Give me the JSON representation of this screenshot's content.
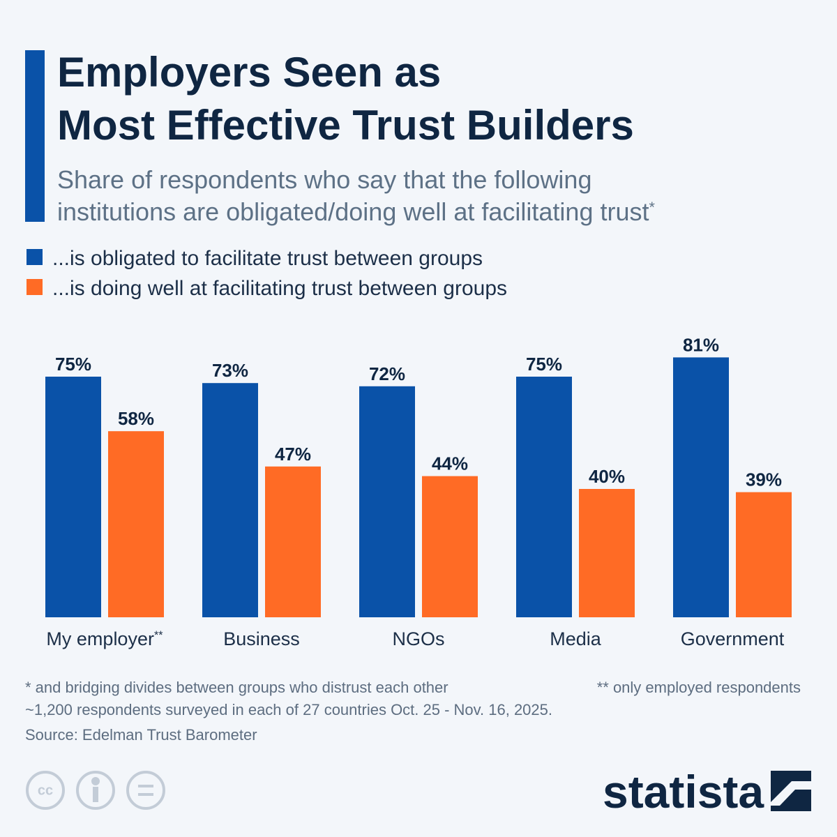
{
  "chart_data": {
    "type": "bar",
    "title": [
      "Employers Seen as",
      "Most Effective Trust Builders"
    ],
    "subtitle": [
      "Share of respondents who say that the following",
      "institutions are obligated/doing well at facilitating trust*"
    ],
    "categories": [
      "My employer**",
      "Business",
      "NGOs",
      "Media",
      "Government"
    ],
    "series": [
      {
        "name": "...is obligated to facilitate trust between groups",
        "color": "#0a52a8",
        "values": [
          75,
          73,
          72,
          75,
          81
        ],
        "value_labels": [
          "75%",
          "73%",
          "72%",
          "75%",
          "81%"
        ]
      },
      {
        "name": "...is doing well at facilitating trust between groups",
        "color": "#ff6b25",
        "values": [
          58,
          47,
          44,
          40,
          39
        ],
        "value_labels": [
          "58%",
          "47%",
          "44%",
          "40%",
          "39%"
        ]
      }
    ],
    "notes": [
      "* and bridging divides between groups who distrust each other",
      "** only employed respondents",
      "~1,200 respondents surveyed in each of 27 countries Oct. 25 - Nov. 16, 2025."
    ],
    "source": "Source: Edelman Trust Barometer",
    "brand": "statista"
  }
}
